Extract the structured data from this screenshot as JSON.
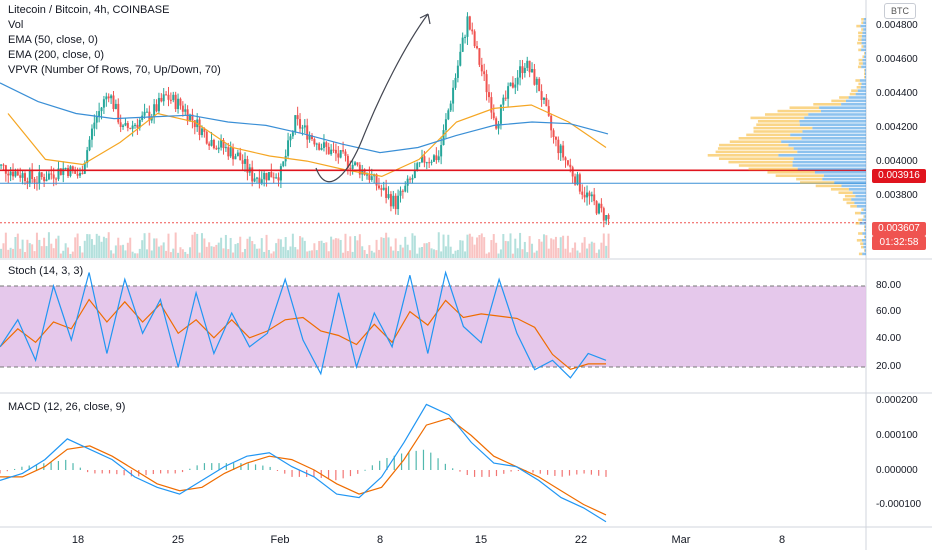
{
  "header": {
    "title": "Litecoin / Bitcoin, 4h, COINBASE",
    "indicators": [
      "Vol",
      "EMA (50, close, 0)",
      "EMA (200, close, 0)",
      "VPVR (Number Of Rows, 70, Up/Down, 70)"
    ],
    "currency_button": "BTC"
  },
  "price_axis": [
    "0.004800",
    "0.004600",
    "0.004400",
    "0.004200",
    "0.004000",
    "0.003800"
  ],
  "price_tags": {
    "level_line": "0.003916",
    "last_price": "0.003607",
    "countdown": "01:32:58"
  },
  "stoch": {
    "label": "Stoch (14, 3, 3)",
    "axis": [
      "80.00",
      "60.00",
      "40.00",
      "20.00"
    ]
  },
  "macd": {
    "label": "MACD (12, 26, close, 9)",
    "axis": [
      "0.000200",
      "0.000100",
      "0.000000",
      "-0.000100"
    ]
  },
  "time_axis": [
    "18",
    "25",
    "Feb",
    "8",
    "15",
    "22",
    "Mar",
    "8"
  ],
  "colors": {
    "up": "#26a69a",
    "down": "#ef5350",
    "ema50": "#f5a623",
    "ema200": "#3a8fd6",
    "level": "#e0141e",
    "stoch_k": "#2196f3",
    "stoch_d": "#ef6c00",
    "band": "#e1bee7"
  },
  "chart_data": [
    {
      "type": "candlestick",
      "title": "Litecoin / Bitcoin, 4h, COINBASE",
      "x_tick_labels": [
        "18",
        "25",
        "Feb",
        "8",
        "15",
        "22",
        "Mar",
        "8"
      ],
      "ylim": [
        0.00355,
        0.0049
      ],
      "horizontal_level": 0.003916,
      "last_price": 0.003607,
      "close_waypoints": [
        {
          "x": "Jan 12",
          "y": 0.00395
        },
        {
          "x": "Jan 15",
          "y": 0.00386
        },
        {
          "x": "Jan 17",
          "y": 0.00393
        },
        {
          "x": "Jan 18",
          "y": 0.00388
        },
        {
          "x": "Jan 19",
          "y": 0.0042
        },
        {
          "x": "Jan 20",
          "y": 0.00438
        },
        {
          "x": "Jan 21",
          "y": 0.00415
        },
        {
          "x": "Jan 23",
          "y": 0.00425
        },
        {
          "x": "Jan 24",
          "y": 0.00435
        },
        {
          "x": "Jan 25",
          "y": 0.0043
        },
        {
          "x": "Jan 27",
          "y": 0.0041
        },
        {
          "x": "Jan 29",
          "y": 0.004
        },
        {
          "x": "Jan 30",
          "y": 0.00388
        },
        {
          "x": "Feb 1",
          "y": 0.0039
        },
        {
          "x": "Feb 2",
          "y": 0.0042
        },
        {
          "x": "Feb 4",
          "y": 0.00405
        },
        {
          "x": "Feb 5",
          "y": 0.004
        },
        {
          "x": "Feb 6",
          "y": 0.00395
        },
        {
          "x": "Feb 7",
          "y": 0.0039
        },
        {
          "x": "Feb 8",
          "y": 0.0038
        },
        {
          "x": "Feb 9",
          "y": 0.00372
        },
        {
          "x": "Feb 10",
          "y": 0.00385
        },
        {
          "x": "Feb 11",
          "y": 0.00398
        },
        {
          "x": "Feb 12",
          "y": 0.004
        },
        {
          "x": "Feb 13",
          "y": 0.0044
        },
        {
          "x": "Feb 14",
          "y": 0.0048
        },
        {
          "x": "Feb 15",
          "y": 0.0045
        },
        {
          "x": "Feb 16",
          "y": 0.0042
        },
        {
          "x": "Feb 17",
          "y": 0.0044
        },
        {
          "x": "Feb 18",
          "y": 0.00455
        },
        {
          "x": "Feb 19",
          "y": 0.0044
        },
        {
          "x": "Feb 20",
          "y": 0.0041
        },
        {
          "x": "Feb 21",
          "y": 0.00395
        },
        {
          "x": "Feb 22",
          "y": 0.0038
        },
        {
          "x": "Feb 23",
          "y": 0.0037
        },
        {
          "x": "Feb 24",
          "y": 0.003607
        }
      ],
      "series": [
        {
          "name": "EMA (50, close, 0)",
          "values": [
            0.00425,
            0.00398,
            0.00395,
            0.00408,
            0.00425,
            0.0042,
            0.00405,
            0.004,
            0.00397,
            0.00392,
            0.00388,
            0.00398,
            0.0042,
            0.00428,
            0.0043,
            0.0042,
            0.00405
          ]
        },
        {
          "name": "EMA (200, close, 0)",
          "values": [
            0.00443,
            0.00432,
            0.00425,
            0.00422,
            0.00423,
            0.00424,
            0.0042,
            0.00418,
            0.00413,
            0.00407,
            0.00402,
            0.00405,
            0.00412,
            0.00418,
            0.0042,
            0.00419,
            0.00413
          ]
        }
      ]
    },
    {
      "type": "line",
      "title": "Stoch (14, 3, 3)",
      "ylim": [
        0,
        100
      ],
      "band": [
        20,
        80
      ],
      "series": [
        {
          "name": "%K",
          "values": [
            35,
            55,
            25,
            80,
            40,
            90,
            30,
            85,
            45,
            70,
            20,
            75,
            30,
            60,
            35,
            45,
            85,
            40,
            15,
            75,
            20,
            60,
            35,
            88,
            30,
            90,
            50,
            38,
            85,
            45,
            18,
            25,
            12,
            30,
            25
          ]
        }
      ]
    },
    {
      "type": "line",
      "title": "MACD (12, 26, close, 9)",
      "ylim": [
        -0.00015,
        0.00022
      ],
      "series": [
        {
          "name": "MACD",
          "values": [
            -3e-05,
            -1e-05,
            3e-05,
            9e-05,
            6e-05,
            3e-05,
            -2e-05,
            -5e-05,
            -7e-05,
            -3e-05,
            1e-05,
            4e-05,
            5e-05,
            1e-05,
            -2e-05,
            -7e-05,
            -8e-05,
            -2e-05,
            8e-05,
            0.00019,
            0.00016,
            8e-05,
            2e-05,
            1e-05,
            -3e-05,
            -8e-05,
            -0.00011,
            -0.00015
          ]
        },
        {
          "name": "Signal",
          "values": [
            -2e-05,
            -2e-05,
            1e-05,
            6e-05,
            7e-05,
            4e-05,
            0.0,
            -4e-05,
            -6e-05,
            -5e-05,
            -1e-05,
            2e-05,
            4e-05,
            3e-05,
            0.0,
            -4e-05,
            -7e-05,
            -5e-05,
            3e-05,
            0.00013,
            0.00015,
            0.0001,
            4e-05,
            1e-05,
            -2e-05,
            -6e-05,
            -0.0001,
            -0.00013
          ]
        }
      ]
    }
  ]
}
